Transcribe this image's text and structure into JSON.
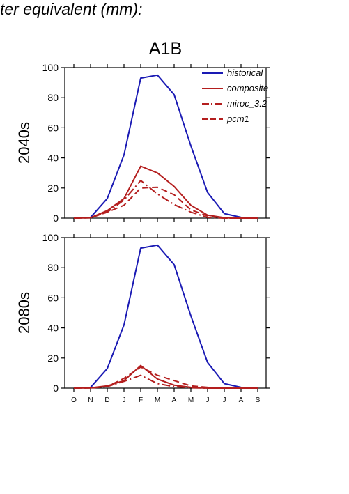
{
  "page": {
    "title": "ter equivalent (mm):",
    "panel_title": "A1B"
  },
  "colors": {
    "historical": "#1a1ab4",
    "projection": "#b41e1e"
  },
  "chart_data": [
    {
      "type": "line",
      "ylabel": "2040s",
      "x": [
        "O",
        "N",
        "D",
        "J",
        "F",
        "M",
        "A",
        "M",
        "J",
        "J",
        "A",
        "S"
      ],
      "ylim": [
        0,
        100
      ],
      "yticks": [
        0,
        20,
        40,
        60,
        80,
        100
      ],
      "legend": {
        "position": "top-right"
      },
      "series": [
        {
          "name": "historical",
          "style": "solid",
          "values": [
            0,
            0.5,
            13,
            42,
            93,
            95,
            82,
            48,
            17,
            3,
            0.5,
            0
          ]
        },
        {
          "name": "composite",
          "style": "solid",
          "values": [
            0,
            0.3,
            5,
            13,
            34.5,
            30,
            21,
            8.5,
            2,
            0.3,
            0,
            0
          ]
        },
        {
          "name": "miroc_3.2",
          "style": "dashdot",
          "values": [
            0,
            0.3,
            4,
            12,
            25,
            16,
            9,
            4,
            0.5,
            0,
            0,
            0
          ]
        },
        {
          "name": "pcm1",
          "style": "dashed",
          "values": [
            0,
            0.2,
            4,
            8.5,
            20,
            20.5,
            15.5,
            5.5,
            1.5,
            0,
            0,
            0
          ]
        }
      ]
    },
    {
      "type": "line",
      "ylabel": "2080s",
      "x": [
        "O",
        "N",
        "D",
        "J",
        "F",
        "M",
        "A",
        "M",
        "J",
        "J",
        "A",
        "S"
      ],
      "ylim": [
        0,
        100
      ],
      "yticks": [
        0,
        20,
        40,
        60,
        80,
        100
      ],
      "series": [
        {
          "name": "historical",
          "style": "solid",
          "values": [
            0,
            0.5,
            13,
            42,
            93,
            95,
            82,
            48,
            17,
            3,
            0.5,
            0
          ]
        },
        {
          "name": "composite",
          "style": "solid",
          "values": [
            0,
            0.2,
            1.5,
            5,
            15,
            6,
            2,
            0.5,
            0,
            0,
            0,
            0
          ]
        },
        {
          "name": "miroc_3.2",
          "style": "dashdot",
          "values": [
            0,
            0.2,
            1,
            4.5,
            8.5,
            3,
            1,
            0.3,
            0,
            0,
            0,
            0
          ]
        },
        {
          "name": "pcm1",
          "style": "dashed",
          "values": [
            0,
            0.1,
            1,
            6.5,
            14,
            8.5,
            5,
            1.5,
            0.5,
            0,
            0,
            0
          ]
        }
      ]
    }
  ]
}
